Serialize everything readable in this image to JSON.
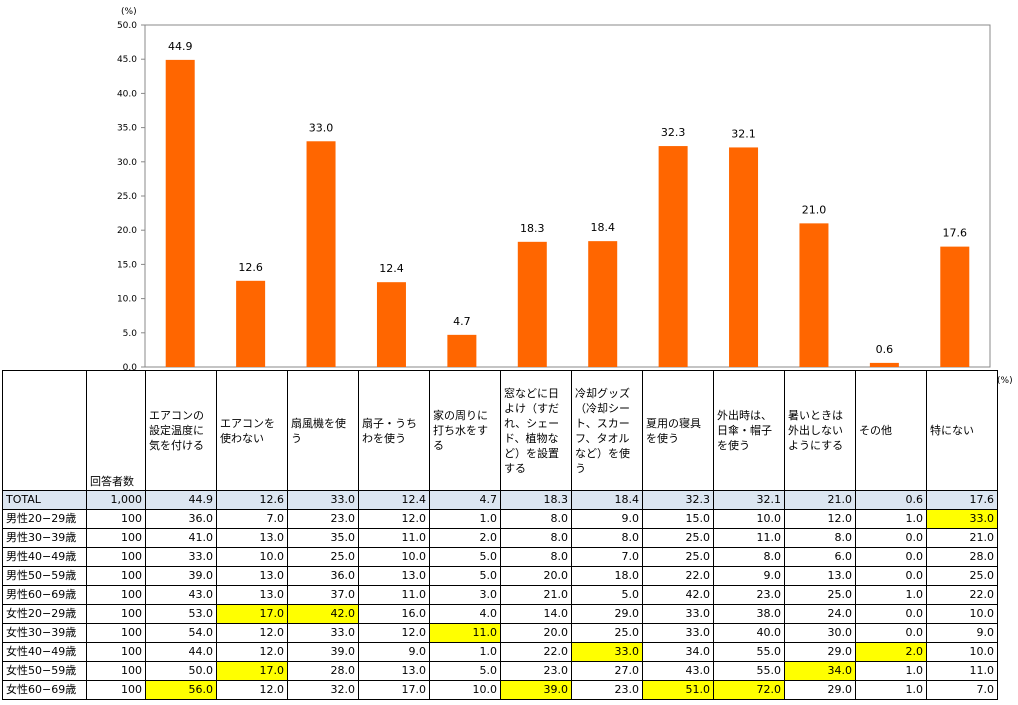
{
  "chart_data": {
    "type": "bar",
    "unit": "(%)",
    "ylim": [
      0,
      50
    ],
    "yticks": [
      "0.0",
      "5.0",
      "10.0",
      "15.0",
      "20.0",
      "25.0",
      "30.0",
      "35.0",
      "40.0",
      "45.0",
      "50.0"
    ],
    "categories": [
      "エアコンの設定温度に気を付ける",
      "エアコンを使わない",
      "扇風機を使う",
      "扇子・うちわを使う",
      "家の周りに打ち水をする",
      "窓などに日よけ（すだれ、シェード、植物など）を設置する",
      "冷却グッズ（冷却シート、スカーフ、タオルなど）を使う",
      "夏用の寝具を使う",
      "外出時は、日傘・帽子を使う",
      "暑いときは外出しないようにする",
      "その他",
      "特にない"
    ],
    "values": [
      44.9,
      12.6,
      33.0,
      12.4,
      4.7,
      18.3,
      18.4,
      32.3,
      32.1,
      21.0,
      0.6,
      17.6
    ],
    "value_labels": [
      "44.9",
      "12.6",
      "33.0",
      "12.4",
      "4.7",
      "18.3",
      "18.4",
      "32.3",
      "32.1",
      "21.0",
      "0.6",
      "17.6"
    ],
    "bar_color": "#ff6600",
    "grid": false
  },
  "table": {
    "unit": "(%)",
    "count_header": "回答者数",
    "headers": [
      "エアコンの設定温度に気を付ける",
      "エアコンを使わない",
      "扇風機を使う",
      "扇子・うちわを使う",
      "家の周りに打ち水をする",
      "窓などに日よけ（すだれ、シェード、植物など）を設置する",
      "冷却グッズ（冷却シート、スカーフ、タオルなど）を使う",
      "夏用の寝具を使う",
      "外出時は、日傘・帽子を使う",
      "暑いときは外出しないようにする",
      "その他",
      "特にない"
    ],
    "highlight_color": "#ffff00",
    "total_row_color": "#dce6f1",
    "rows": [
      {
        "label": "TOTAL",
        "count": "1,000",
        "values": [
          "44.9",
          "12.6",
          "33.0",
          "12.4",
          "4.7",
          "18.3",
          "18.4",
          "32.3",
          "32.1",
          "21.0",
          "0.6",
          "17.6"
        ],
        "highlight": []
      },
      {
        "label": "男性20−29歳",
        "count": "100",
        "values": [
          "36.0",
          "7.0",
          "23.0",
          "12.0",
          "1.0",
          "8.0",
          "9.0",
          "15.0",
          "10.0",
          "12.0",
          "1.0",
          "33.0"
        ],
        "highlight": [
          11
        ]
      },
      {
        "label": "男性30−39歳",
        "count": "100",
        "values": [
          "41.0",
          "13.0",
          "35.0",
          "11.0",
          "2.0",
          "8.0",
          "8.0",
          "25.0",
          "11.0",
          "8.0",
          "0.0",
          "21.0"
        ],
        "highlight": []
      },
      {
        "label": "男性40−49歳",
        "count": "100",
        "values": [
          "33.0",
          "10.0",
          "25.0",
          "10.0",
          "5.0",
          "8.0",
          "7.0",
          "25.0",
          "8.0",
          "6.0",
          "0.0",
          "28.0"
        ],
        "highlight": []
      },
      {
        "label": "男性50−59歳",
        "count": "100",
        "values": [
          "39.0",
          "13.0",
          "36.0",
          "13.0",
          "5.0",
          "20.0",
          "18.0",
          "22.0",
          "9.0",
          "13.0",
          "0.0",
          "25.0"
        ],
        "highlight": []
      },
      {
        "label": "男性60−69歳",
        "count": "100",
        "values": [
          "43.0",
          "13.0",
          "37.0",
          "11.0",
          "3.0",
          "21.0",
          "5.0",
          "42.0",
          "23.0",
          "25.0",
          "1.0",
          "22.0"
        ],
        "highlight": []
      },
      {
        "label": "女性20−29歳",
        "count": "100",
        "values": [
          "53.0",
          "17.0",
          "42.0",
          "16.0",
          "4.0",
          "14.0",
          "29.0",
          "33.0",
          "38.0",
          "24.0",
          "0.0",
          "10.0"
        ],
        "highlight": [
          1,
          2
        ]
      },
      {
        "label": "女性30−39歳",
        "count": "100",
        "values": [
          "54.0",
          "12.0",
          "33.0",
          "12.0",
          "11.0",
          "20.0",
          "25.0",
          "33.0",
          "40.0",
          "30.0",
          "0.0",
          "9.0"
        ],
        "highlight": [
          4
        ]
      },
      {
        "label": "女性40−49歳",
        "count": "100",
        "values": [
          "44.0",
          "12.0",
          "39.0",
          "9.0",
          "1.0",
          "22.0",
          "33.0",
          "34.0",
          "55.0",
          "29.0",
          "2.0",
          "10.0"
        ],
        "highlight": [
          6,
          10
        ]
      },
      {
        "label": "女性50−59歳",
        "count": "100",
        "values": [
          "50.0",
          "17.0",
          "28.0",
          "13.0",
          "5.0",
          "23.0",
          "27.0",
          "43.0",
          "55.0",
          "34.0",
          "1.0",
          "11.0"
        ],
        "highlight": [
          1,
          9
        ]
      },
      {
        "label": "女性60−69歳",
        "count": "100",
        "values": [
          "56.0",
          "12.0",
          "32.0",
          "17.0",
          "10.0",
          "39.0",
          "23.0",
          "51.0",
          "72.0",
          "29.0",
          "1.0",
          "7.0"
        ],
        "highlight": [
          0,
          5,
          7,
          8
        ]
      }
    ]
  }
}
